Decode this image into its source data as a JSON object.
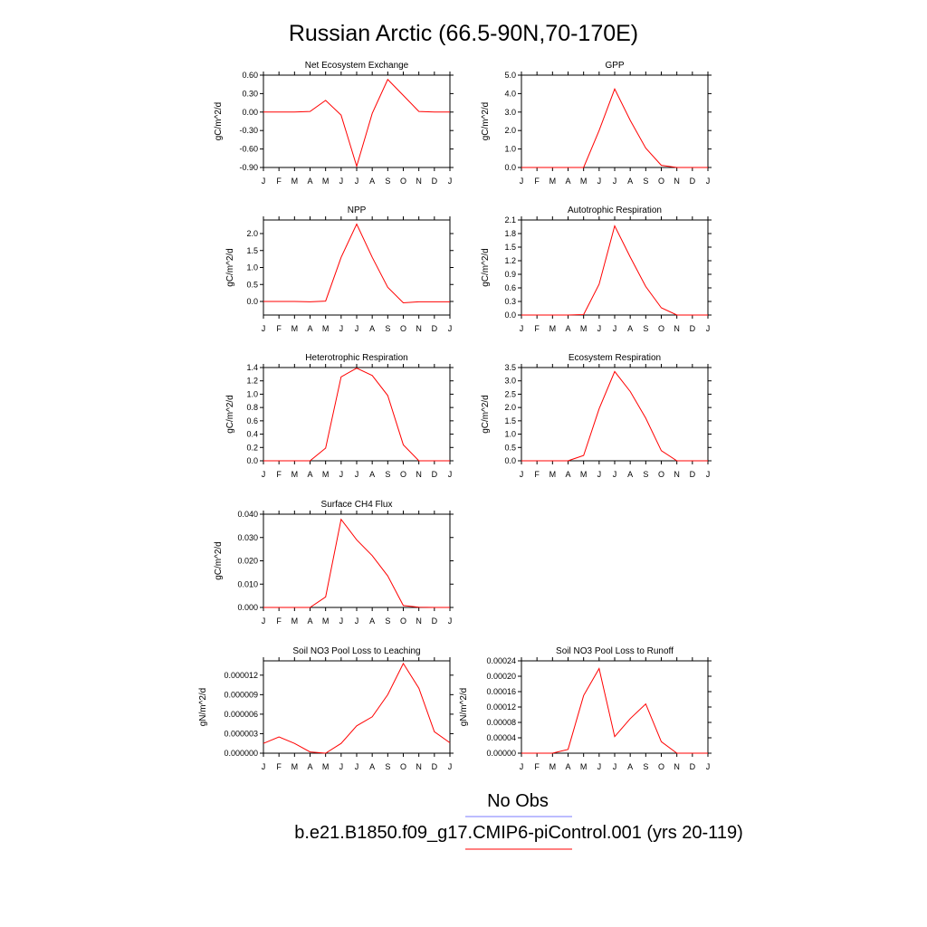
{
  "figure": {
    "title": "Russian Arctic (66.5-90N,70-170E)",
    "month_labels": [
      "J",
      "F",
      "M",
      "A",
      "M",
      "J",
      "J",
      "A",
      "S",
      "O",
      "N",
      "D",
      "J"
    ],
    "series_color": "#ff0000",
    "obs_color": "#7b7bff"
  },
  "legend": {
    "obs_label": "No Obs",
    "model_label": "b.e21.B1850.f09_g17.CMIP6-piControl.001 (yrs 20-119)"
  },
  "chart_data": [
    {
      "type": "line",
      "title": "Net Ecosystem Exchange",
      "ylabel": "gC/m^2/d",
      "ylim": [
        -0.9,
        0.6
      ],
      "yticks": [
        0.6,
        0.3,
        0.0,
        -0.3,
        -0.6,
        -0.9
      ],
      "ytick_labels": [
        "0.60",
        "0.30",
        "0.00",
        "-0.30",
        "-0.60",
        "-0.90"
      ],
      "x": [
        "J",
        "F",
        "M",
        "A",
        "M",
        "J",
        "J",
        "A",
        "S",
        "O",
        "N",
        "D",
        "J"
      ],
      "values": [
        0.0,
        0.0,
        0.0,
        0.01,
        0.19,
        -0.05,
        -0.88,
        -0.02,
        0.53,
        0.27,
        0.01,
        0.0,
        0.0
      ]
    },
    {
      "type": "line",
      "title": "GPP",
      "ylabel": "gC/m^2/d",
      "ylim": [
        0,
        5
      ],
      "yticks": [
        5,
        4,
        3,
        2,
        1,
        0
      ],
      "ytick_labels": [
        "5.0",
        "4.0",
        "3.0",
        "2.0",
        "1.0",
        "0.0"
      ],
      "x": [
        "J",
        "F",
        "M",
        "A",
        "M",
        "J",
        "J",
        "A",
        "S",
        "O",
        "N",
        "D",
        "J"
      ],
      "values": [
        0.0,
        0.0,
        0.0,
        0.0,
        0.0,
        2.0,
        4.25,
        2.55,
        1.05,
        0.12,
        0.0,
        0.0,
        0.0
      ]
    },
    {
      "type": "line",
      "title": "NPP",
      "ylabel": "gC/m^2/d",
      "ylim": [
        -0.4,
        2.4
      ],
      "yticks": [
        2.0,
        1.5,
        1.0,
        0.5,
        0.0
      ],
      "ytick_labels": [
        "2.0",
        "1.5",
        "1.0",
        "0.5",
        "0.0"
      ],
      "x": [
        "J",
        "F",
        "M",
        "A",
        "M",
        "J",
        "J",
        "A",
        "S",
        "O",
        "N",
        "D",
        "J"
      ],
      "values": [
        0.0,
        0.0,
        0.0,
        -0.01,
        0.01,
        1.3,
        2.28,
        1.3,
        0.42,
        -0.04,
        -0.01,
        -0.01,
        -0.01
      ]
    },
    {
      "type": "line",
      "title": "Autotrophic Respiration",
      "ylabel": "gC/m^2/d",
      "ylim": [
        0,
        2.1
      ],
      "yticks": [
        2.1,
        1.8,
        1.5,
        1.2,
        0.9,
        0.6,
        0.3,
        0.0
      ],
      "ytick_labels": [
        "2.1",
        "1.8",
        "1.5",
        "1.2",
        "0.9",
        "0.6",
        "0.3",
        "0.0"
      ],
      "x": [
        "J",
        "F",
        "M",
        "A",
        "M",
        "J",
        "J",
        "A",
        "S",
        "O",
        "N",
        "D",
        "J"
      ],
      "values": [
        0.0,
        0.0,
        0.0,
        0.0,
        0.01,
        0.68,
        1.97,
        1.28,
        0.63,
        0.16,
        0.0,
        0.0,
        0.0
      ]
    },
    {
      "type": "line",
      "title": "Heterotrophic Respiration",
      "ylabel": "gC/m^2/d",
      "ylim": [
        0,
        1.4
      ],
      "yticks": [
        1.4,
        1.2,
        1.0,
        0.8,
        0.6,
        0.4,
        0.2,
        0.0
      ],
      "ytick_labels": [
        "1.4",
        "1.2",
        "1.0",
        "0.8",
        "0.6",
        "0.4",
        "0.2",
        "0.0"
      ],
      "x": [
        "J",
        "F",
        "M",
        "A",
        "M",
        "J",
        "J",
        "A",
        "S",
        "O",
        "N",
        "D",
        "J"
      ],
      "values": [
        0.0,
        0.0,
        0.0,
        0.0,
        0.19,
        1.26,
        1.39,
        1.28,
        0.98,
        0.24,
        0.0,
        0.0,
        0.0
      ]
    },
    {
      "type": "line",
      "title": "Ecosystem Respiration",
      "ylabel": "gC/m^2/d",
      "ylim": [
        0,
        3.5
      ],
      "yticks": [
        3.5,
        3.0,
        2.5,
        2.0,
        1.5,
        1.0,
        0.5,
        0.0
      ],
      "ytick_labels": [
        "3.5",
        "3.0",
        "2.5",
        "2.0",
        "1.5",
        "1.0",
        "0.5",
        "0.0"
      ],
      "x": [
        "J",
        "F",
        "M",
        "A",
        "M",
        "J",
        "J",
        "A",
        "S",
        "O",
        "N",
        "D",
        "J"
      ],
      "values": [
        0.0,
        0.0,
        0.0,
        0.0,
        0.2,
        1.95,
        3.35,
        2.6,
        1.6,
        0.38,
        0.0,
        0.0,
        0.0
      ]
    },
    {
      "type": "line",
      "title": "Surface CH4 Flux",
      "ylabel": "gC/m^2/d",
      "ylim": [
        0,
        0.04
      ],
      "yticks": [
        0.04,
        0.03,
        0.02,
        0.01,
        0.0
      ],
      "ytick_labels": [
        "0.040",
        "0.030",
        "0.020",
        "0.010",
        "0.000"
      ],
      "x": [
        "J",
        "F",
        "M",
        "A",
        "M",
        "J",
        "J",
        "A",
        "S",
        "O",
        "N",
        "D",
        "J"
      ],
      "values": [
        0.0,
        0.0,
        0.0,
        0.0,
        0.0045,
        0.0378,
        0.029,
        0.0222,
        0.0135,
        0.0008,
        0.0001,
        0.0,
        0.0
      ]
    },
    {
      "type": "line",
      "title": "Soil NO3 Pool Loss to Leaching",
      "ylabel": "gN/m^2/d",
      "ylim": [
        0,
        1.42e-05
      ],
      "yticks": [
        1.2e-05,
        9e-06,
        6e-06,
        3e-06,
        0.0
      ],
      "ytick_labels": [
        "0.000012",
        "0.000009",
        "0.000006",
        "0.000003",
        "0.000000"
      ],
      "x": [
        "J",
        "F",
        "M",
        "A",
        "M",
        "J",
        "J",
        "A",
        "S",
        "O",
        "N",
        "D",
        "J"
      ],
      "values": [
        1.5e-06,
        2.5e-06,
        1.5e-06,
        2e-07,
        0.0,
        1.5e-06,
        4.2e-06,
        5.6e-06,
        9e-06,
        1.38e-05,
        1e-05,
        3.3e-06,
        1.6e-06
      ]
    },
    {
      "type": "line",
      "title": "Soil NO3 Pool Loss to Runoff",
      "ylabel": "gN/m^2/d",
      "ylim": [
        0,
        0.00024
      ],
      "yticks": [
        0.00024,
        0.0002,
        0.00016,
        0.00012,
        8e-05,
        4e-05,
        0.0
      ],
      "ytick_labels": [
        "0.00024",
        "0.00020",
        "0.00016",
        "0.00012",
        "0.00008",
        "0.00004",
        "0.00000"
      ],
      "x": [
        "J",
        "F",
        "M",
        "A",
        "M",
        "J",
        "J",
        "A",
        "S",
        "O",
        "N",
        "D",
        "J"
      ],
      "values": [
        0.0,
        0.0,
        0.0,
        1e-05,
        0.00015,
        0.00022,
        4.3e-05,
        9e-05,
        0.000128,
        3e-05,
        0.0,
        0.0,
        0.0
      ]
    }
  ]
}
